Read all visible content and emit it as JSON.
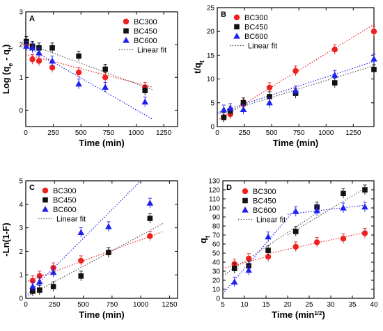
{
  "chart_data": [
    {
      "panel": "A",
      "type": "scatter",
      "xlabel": "Time (min)",
      "ylabel": "Log (q_e - q_t)",
      "xlim": [
        0,
        1375
      ],
      "ylim": [
        -0.5,
        3
      ],
      "xticks": [
        0,
        250,
        500,
        750,
        1000,
        1250
      ],
      "yticks": [
        0,
        1,
        2,
        3
      ],
      "legend_position": "top-right",
      "series": [
        {
          "name": "BC300",
          "marker": "circle",
          "color": "#ee2020",
          "x": [
            5,
            60,
            120,
            240,
            480,
            720,
            1080
          ],
          "y": [
            2.0,
            1.55,
            1.5,
            1.3,
            1.15,
            1.0,
            0.7
          ]
        },
        {
          "name": "BC450",
          "marker": "square",
          "color": "#111111",
          "x": [
            5,
            60,
            120,
            240,
            480,
            720,
            1080
          ],
          "y": [
            2.1,
            1.95,
            1.9,
            1.9,
            1.65,
            1.25,
            0.6
          ]
        },
        {
          "name": "BC600",
          "marker": "triangle",
          "color": "#2020ee",
          "x": [
            5,
            60,
            120,
            240,
            480,
            720,
            1080
          ],
          "y": [
            1.95,
            1.9,
            1.75,
            1.5,
            0.8,
            0.7,
            0.25
          ]
        }
      ],
      "fits": [
        {
          "color": "#ee2020",
          "x": [
            0,
            1150
          ],
          "y": [
            1.7,
            0.7
          ]
        },
        {
          "color": "#555555",
          "x": [
            0,
            1150
          ],
          "y": [
            2.05,
            0.62
          ]
        },
        {
          "color": "#2020ee",
          "x": [
            0,
            1150
          ],
          "y": [
            1.95,
            -0.28
          ]
        }
      ],
      "legend": [
        "BC300",
        "BC450",
        "BC600",
        "Linear fit"
      ]
    },
    {
      "panel": "B",
      "type": "scatter",
      "xlabel": "Time (min)",
      "ylabel": "t/q_t",
      "xlim": [
        0,
        1440
      ],
      "ylim": [
        0,
        25
      ],
      "xticks": [
        0,
        250,
        500,
        750,
        1000,
        1250
      ],
      "yticks": [
        0,
        5,
        10,
        15,
        20,
        25
      ],
      "legend_position": "top-left",
      "series": [
        {
          "name": "BC300",
          "marker": "circle",
          "color": "#ee2020",
          "x": [
            60,
            120,
            240,
            480,
            720,
            1080,
            1440
          ],
          "y": [
            2.0,
            2.6,
            4.7,
            8.2,
            11.7,
            16.2,
            20.0
          ]
        },
        {
          "name": "BC450",
          "marker": "square",
          "color": "#111111",
          "x": [
            60,
            120,
            240,
            480,
            720,
            1080,
            1440
          ],
          "y": [
            1.9,
            3.3,
            5.0,
            6.3,
            7.0,
            9.2,
            12.0
          ]
        },
        {
          "name": "BC600",
          "marker": "triangle",
          "color": "#2020ee",
          "x": [
            60,
            120,
            240,
            480,
            720,
            1080,
            1440
          ],
          "y": [
            3.5,
            3.8,
            3.6,
            5.0,
            7.5,
            10.8,
            14.2
          ]
        }
      ],
      "fits": [
        {
          "color": "#ee2020",
          "x": [
            0,
            1440
          ],
          "y": [
            1.3,
            21.5
          ]
        },
        {
          "color": "#555555",
          "x": [
            0,
            1440
          ],
          "y": [
            2.6,
            12.8
          ]
        },
        {
          "color": "#2020ee",
          "x": [
            0,
            1440
          ],
          "y": [
            2.9,
            13.7
          ]
        }
      ],
      "legend": [
        "BC300",
        "BC450",
        "BC600",
        "Linear fit"
      ]
    },
    {
      "panel": "C",
      "type": "scatter",
      "xlabel": "Time (min)",
      "ylabel": "-Ln(1-F)",
      "xlim": [
        0,
        1320
      ],
      "ylim": [
        0,
        5
      ],
      "xticks": [
        0,
        250,
        500,
        750,
        1000,
        1250
      ],
      "yticks": [
        0,
        1,
        2,
        3,
        4,
        5
      ],
      "legend_position": "top-left",
      "series": [
        {
          "name": "BC300",
          "marker": "circle",
          "color": "#ee2020",
          "x": [
            60,
            120,
            240,
            480,
            720,
            1080
          ],
          "y": [
            0.75,
            0.95,
            1.3,
            1.6,
            1.95,
            2.65
          ]
        },
        {
          "name": "BC450",
          "marker": "square",
          "color": "#111111",
          "x": [
            60,
            120,
            240,
            480,
            720,
            1080
          ],
          "y": [
            0.3,
            0.35,
            0.5,
            0.95,
            1.95,
            3.4
          ]
        },
        {
          "name": "BC600",
          "marker": "triangle",
          "color": "#2020ee",
          "x": [
            60,
            120,
            240,
            480,
            720,
            1080
          ],
          "y": [
            0.5,
            0.7,
            1.1,
            2.8,
            3.05,
            4.05
          ]
        }
      ],
      "fits": [
        {
          "color": "#ee2020",
          "x": [
            0,
            1200
          ],
          "y": [
            0.7,
            2.85
          ]
        },
        {
          "color": "#555555",
          "x": [
            0,
            1200
          ],
          "y": [
            0.05,
            3.2
          ]
        },
        {
          "color": "#2020ee",
          "x": [
            0,
            1000
          ],
          "y": [
            0.1,
            5.0
          ]
        }
      ],
      "legend": [
        "BC300",
        "BC450",
        "BC600",
        "Linear fit"
      ]
    },
    {
      "panel": "D",
      "type": "scatter",
      "xlabel": "Time (min^1/2)",
      "ylabel": "q_t",
      "xlim": [
        5,
        40
      ],
      "ylim": [
        0,
        130
      ],
      "xticks": [
        5,
        10,
        15,
        20,
        25,
        30,
        35,
        40
      ],
      "yticks": [
        0,
        10,
        20,
        30,
        40,
        50,
        60,
        70,
        80,
        90,
        100,
        110,
        120,
        130
      ],
      "legend_position": "top-left",
      "series": [
        {
          "name": "BC300",
          "marker": "circle",
          "color": "#ee2020",
          "x": [
            7.7,
            11.0,
            15.5,
            21.9,
            26.8,
            32.9,
            37.9
          ],
          "y": [
            38,
            44,
            46,
            57,
            62,
            66,
            72
          ]
        },
        {
          "name": "BC450",
          "marker": "square",
          "color": "#111111",
          "x": [
            7.7,
            11.0,
            15.5,
            21.9,
            26.8,
            32.9,
            37.9
          ],
          "y": [
            33,
            36,
            53,
            74,
            101,
            116,
            120
          ]
        },
        {
          "name": "BC600",
          "marker": "triangle",
          "color": "#2020ee",
          "x": [
            7.7,
            11.0,
            15.5,
            21.9,
            26.8,
            32.9,
            37.9
          ],
          "y": [
            18,
            31,
            68,
            96,
            97,
            100,
            101
          ]
        }
      ],
      "fits": [
        {
          "color": "#ee2020",
          "x": [
            5,
            16
          ],
          "y": [
            33,
            47
          ]
        },
        {
          "color": "#ee2020",
          "x": [
            16,
            38
          ],
          "y": [
            50,
            73
          ]
        },
        {
          "color": "#555555",
          "x": [
            5,
            27
          ],
          "y": [
            25,
            95
          ]
        },
        {
          "color": "#555555",
          "x": [
            20,
            38
          ],
          "y": [
            70,
            122
          ]
        },
        {
          "color": "#2020ee",
          "x": [
            5,
            22
          ],
          "y": [
            5,
            100
          ]
        },
        {
          "color": "#2020ee",
          "x": [
            20,
            38
          ],
          "y": [
            93,
            103
          ]
        }
      ],
      "legend": [
        "BC300",
        "BC450",
        "BC600",
        "Linear fit"
      ]
    }
  ]
}
